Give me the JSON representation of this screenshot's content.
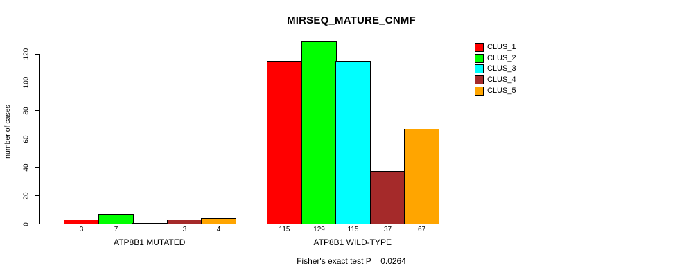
{
  "chart_data": {
    "type": "bar",
    "title": "MIRSEQ_MATURE_CNMF",
    "xlabel": "",
    "ylabel": "number of cases",
    "ylim": [
      0,
      129
    ],
    "yticks": [
      0,
      20,
      40,
      60,
      80,
      100,
      120
    ],
    "grid": false,
    "legend_position": "top-right",
    "groups": [
      "ATP8B1 MUTATED",
      "ATP8B1 WILD-TYPE"
    ],
    "series": [
      {
        "name": "CLUS_1",
        "color": "#FF0000",
        "values": [
          3,
          115
        ]
      },
      {
        "name": "CLUS_2",
        "color": "#00FF00",
        "values": [
          7,
          129
        ]
      },
      {
        "name": "CLUS_3",
        "color": "#00FFFF",
        "values": [
          0,
          115
        ]
      },
      {
        "name": "CLUS_4",
        "color": "#A52A2A",
        "values": [
          3,
          37
        ]
      },
      {
        "name": "CLUS_5",
        "color": "#FFA500",
        "values": [
          4,
          67
        ]
      }
    ],
    "bar_value_labels_shown": true,
    "zero_value_labels_hidden": true,
    "footnote": "Fisher's exact test P = 0.0264",
    "axis_color": "#000000",
    "bar_border_color": "#000000",
    "background_color": "#ffffff"
  }
}
